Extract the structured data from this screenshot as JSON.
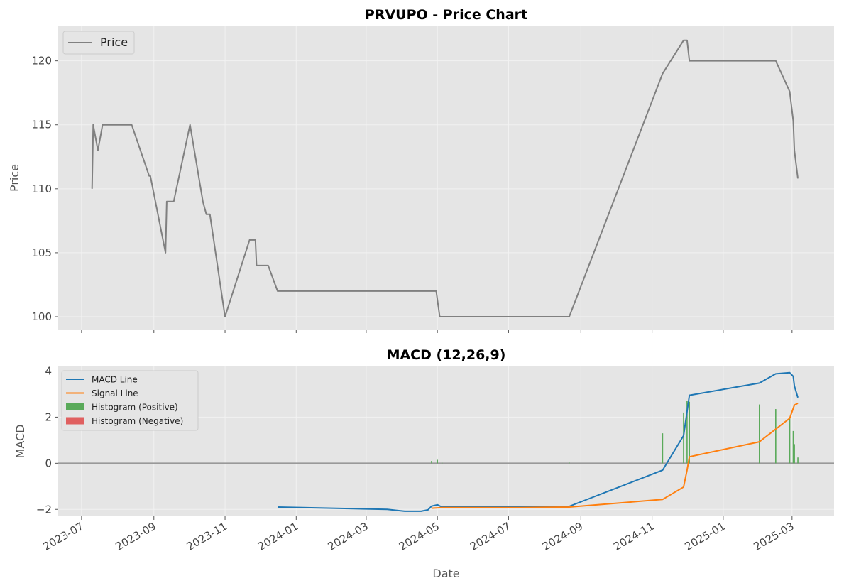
{
  "chart_data": [
    {
      "type": "line",
      "title": "PRVUPO - Price Chart",
      "xlabel": "",
      "ylabel": "Price",
      "ylim": [
        99,
        122.7
      ],
      "xlim": [
        "2023-06-11",
        "2025-04-06"
      ],
      "yticks": [
        100,
        105,
        110,
        115,
        120
      ],
      "grid": true,
      "legend_placement": "top-left",
      "series": [
        {
          "name": "Price",
          "color": "#808080",
          "points": [
            [
              "2023-07-10",
              110
            ],
            [
              "2023-07-11",
              115
            ],
            [
              "2023-07-15",
              113
            ],
            [
              "2023-07-19",
              115
            ],
            [
              "2023-08-13",
              115
            ],
            [
              "2023-08-28",
              111
            ],
            [
              "2023-08-29",
              111
            ],
            [
              "2023-09-11",
              105
            ],
            [
              "2023-09-12",
              109
            ],
            [
              "2023-09-18",
              109
            ],
            [
              "2023-10-02",
              115
            ],
            [
              "2023-10-13",
              109
            ],
            [
              "2023-10-16",
              108
            ],
            [
              "2023-10-19",
              108
            ],
            [
              "2023-11-01",
              100
            ],
            [
              "2023-11-22",
              106
            ],
            [
              "2023-11-27",
              106
            ],
            [
              "2023-11-28",
              104
            ],
            [
              "2023-12-08",
              104
            ],
            [
              "2023-12-16",
              102
            ],
            [
              "2024-04-30",
              102
            ],
            [
              "2024-05-03",
              100
            ],
            [
              "2024-08-22",
              100
            ],
            [
              "2024-11-10",
              119
            ],
            [
              "2024-11-28",
              121.6
            ],
            [
              "2024-12-01",
              121.6
            ],
            [
              "2024-12-03",
              120
            ],
            [
              "2025-02-15",
              120
            ],
            [
              "2025-02-27",
              117.6
            ],
            [
              "2025-03-02",
              115.3
            ],
            [
              "2025-03-03",
              113
            ],
            [
              "2025-03-06",
              110.8
            ]
          ]
        }
      ]
    },
    {
      "type": "line",
      "title": "MACD (12,26,9)",
      "xlabel": "Date",
      "ylabel": "MACD",
      "ylim": [
        -2.3,
        4.2
      ],
      "xlim": [
        "2023-06-11",
        "2025-04-06"
      ],
      "yticks": [
        -2,
        0,
        2,
        4
      ],
      "xticks": [
        "2023-07",
        "2023-09",
        "2023-11",
        "2024-01",
        "2024-03",
        "2024-05",
        "2024-07",
        "2024-09",
        "2024-11",
        "2025-01",
        "2025-03"
      ],
      "grid": true,
      "legend_placement": "top-left",
      "series": [
        {
          "name": "MACD Line",
          "color": "#1f77b4",
          "points": [
            [
              "2023-12-16",
              -1.9
            ],
            [
              "2024-03-19",
              -2.0
            ],
            [
              "2024-04-03",
              -2.08
            ],
            [
              "2024-04-17",
              -2.08
            ],
            [
              "2024-04-23",
              -2.02
            ],
            [
              "2024-04-26",
              -1.86
            ],
            [
              "2024-05-01",
              -1.8
            ],
            [
              "2024-05-05",
              -1.9
            ],
            [
              "2024-08-22",
              -1.87
            ],
            [
              "2024-11-10",
              -0.3
            ],
            [
              "2024-11-28",
              1.2
            ],
            [
              "2024-12-03",
              2.95
            ],
            [
              "2025-02-01",
              3.48
            ],
            [
              "2025-02-15",
              3.88
            ],
            [
              "2025-02-27",
              3.93
            ],
            [
              "2025-03-02",
              3.77
            ],
            [
              "2025-03-03",
              3.35
            ],
            [
              "2025-03-06",
              2.85
            ]
          ]
        },
        {
          "name": "Signal Line",
          "color": "#ff7f0e",
          "points": [
            [
              "2024-04-26",
              -1.95
            ],
            [
              "2024-05-05",
              -1.92
            ],
            [
              "2024-07-10",
              -1.92
            ],
            [
              "2024-08-22",
              -1.9
            ],
            [
              "2024-11-10",
              -1.57
            ],
            [
              "2024-11-28",
              -1.03
            ],
            [
              "2024-12-01",
              -0.3
            ],
            [
              "2024-12-03",
              0.28
            ],
            [
              "2025-02-01",
              0.93
            ],
            [
              "2025-02-27",
              1.95
            ],
            [
              "2025-03-03",
              2.52
            ],
            [
              "2025-03-06",
              2.6
            ]
          ]
        }
      ],
      "histogram": {
        "positive_name": "Histogram (Positive)",
        "negative_name": "Histogram (Negative)",
        "positive_color": "#5aaa5a",
        "negative_color": "#e06060",
        "bars": [
          [
            "2024-04-26",
            0.1
          ],
          [
            "2024-05-01",
            0.15
          ],
          [
            "2024-05-05",
            0.02
          ],
          [
            "2024-08-22",
            0.03
          ],
          [
            "2024-11-10",
            1.3
          ],
          [
            "2024-11-28",
            2.2
          ],
          [
            "2024-12-01",
            2.7
          ],
          [
            "2024-12-03",
            2.67
          ],
          [
            "2025-02-01",
            2.55
          ],
          [
            "2025-02-15",
            2.35
          ],
          [
            "2025-02-27",
            1.98
          ],
          [
            "2025-03-02",
            1.4
          ],
          [
            "2025-03-03",
            0.83
          ],
          [
            "2025-03-06",
            0.25
          ]
        ]
      }
    }
  ]
}
